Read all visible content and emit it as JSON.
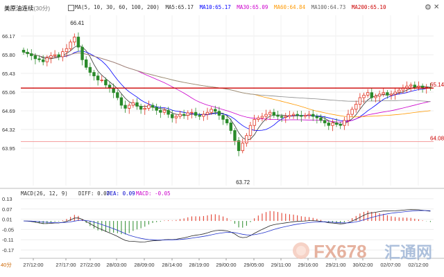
{
  "header": {
    "symbol": "美原油连续",
    "period": "(30分)",
    "ma_title": "MA(5, 10, 30, 60, 100, 200)",
    "ma_values": [
      {
        "label": "MA5:65.17",
        "color": "#333333"
      },
      {
        "label": "MA10:65.17",
        "color": "#0000ff"
      },
      {
        "label": "MA30:65.09",
        "color": "#cc00cc"
      },
      {
        "label": "MA60:64.84",
        "color": "#ff9900"
      },
      {
        "label": "MA100:64.73",
        "color": "#666666"
      },
      {
        "label": "MA200:65.10",
        "color": "#cc0000"
      }
    ]
  },
  "icons": {
    "settings": "gear-icon",
    "close": "close-icon"
  },
  "price_axis": {
    "ticks": [
      "66.17",
      "65.80",
      "65.43",
      "65.06",
      "64.69",
      "64.32",
      "63.95"
    ]
  },
  "annotations": {
    "high": "66.41",
    "low": "63.72",
    "current_price": "65.14",
    "lower_line": "64.08"
  },
  "price_lines": {
    "current": 65.14,
    "lower": 64.08
  },
  "macd": {
    "title": "MACD(26, 12, 9)",
    "diff": "DIFF: 0.07",
    "dea": "DEA: 0.09",
    "macd": "MACD: -0.05",
    "ticks": [
      "0.13",
      "0.07",
      "0.01",
      "-0.05",
      "-0.11",
      "-0.17"
    ]
  },
  "time_axis": {
    "labels": [
      "27/12:00",
      "27/17:00",
      "27/22:00",
      "28/03:00",
      "28/09:00",
      "28/14:00",
      "28/19:00",
      "29/00:00",
      "29/05:00",
      "29/11:00",
      "29/16:00",
      "29/21:00",
      "30/02:00",
      "02/07:00",
      "02/12:00"
    ],
    "left_label": "40分"
  },
  "watermark": {
    "text": "FX678",
    "chinese": "汇通网"
  },
  "colors": {
    "up": "#e0301e",
    "down": "#2a8a2a",
    "grid": "#e0e0e0"
  }
}
